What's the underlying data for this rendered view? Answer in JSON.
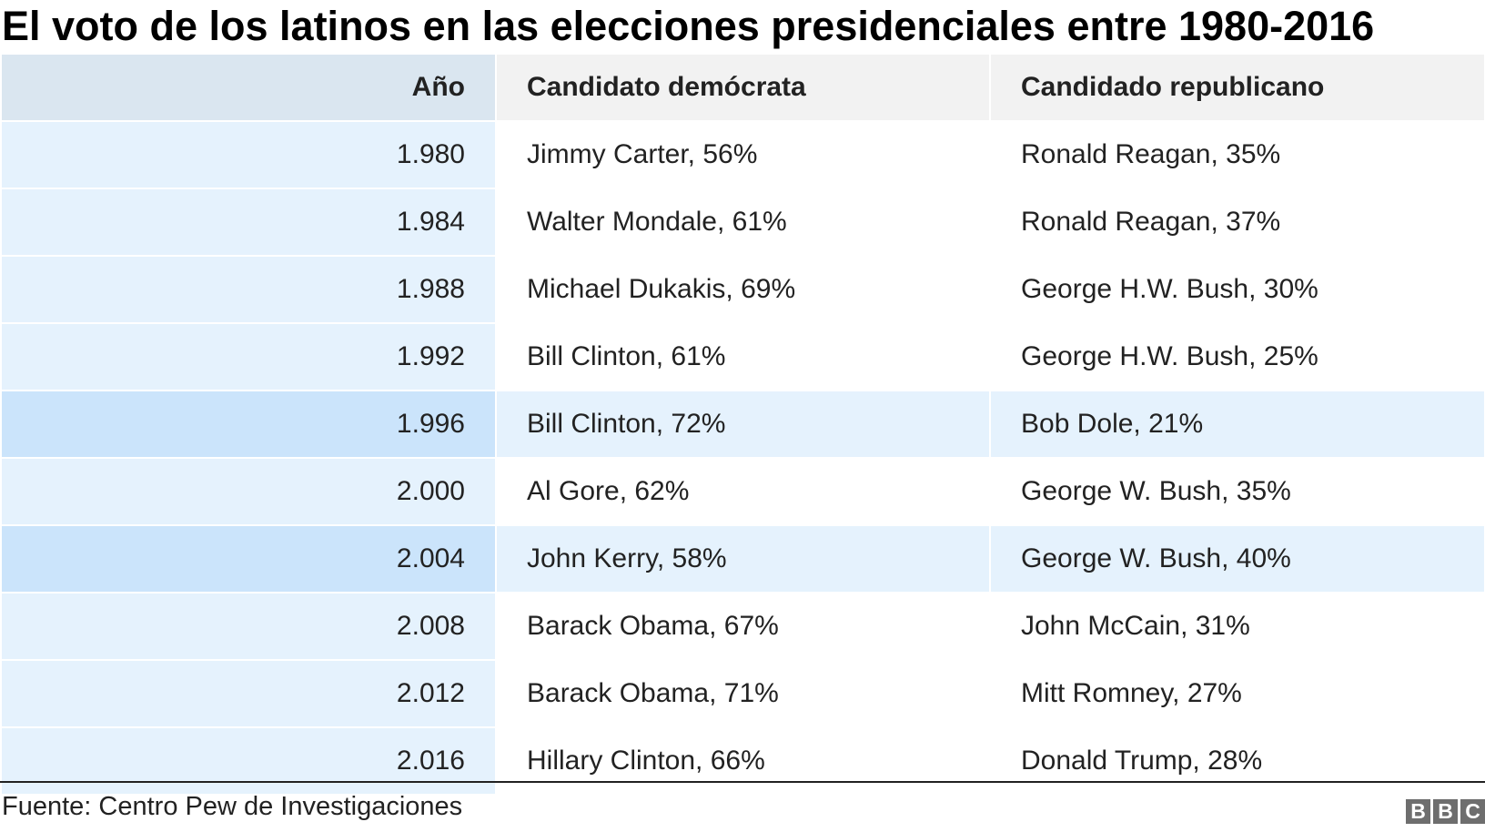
{
  "chart_data": {
    "type": "table",
    "title": "El voto de los latinos en las elecciones presidenciales entre 1980-2016",
    "columns": [
      "Año",
      "Candidato demócrata",
      "Candidado republicano"
    ],
    "rows": [
      {
        "year": "1.980",
        "democrat": "Jimmy Carter, 56%",
        "republican": "Ronald Reagan, 35%"
      },
      {
        "year": "1.984",
        "democrat": "Walter Mondale, 61%",
        "republican": "Ronald Reagan, 37%"
      },
      {
        "year": "1.988",
        "democrat": "Michael Dukakis, 69%",
        "republican": "George H.W. Bush, 30%"
      },
      {
        "year": "1.992",
        "democrat": "Bill Clinton, 61%",
        "republican": "George H.W. Bush, 25%"
      },
      {
        "year": "1.996",
        "democrat": "Bill Clinton, 72%",
        "republican": "Bob Dole, 21%"
      },
      {
        "year": "2.000",
        "democrat": "Al Gore, 62%",
        "republican": "George W. Bush, 35%"
      },
      {
        "year": "2.004",
        "democrat": "John Kerry, 58%",
        "republican": "George W. Bush, 40%"
      },
      {
        "year": "2.008",
        "democrat": "Barack Obama, 67%",
        "republican": "John McCain, 31%"
      },
      {
        "year": "2.012",
        "democrat": "Barack Obama, 71%",
        "republican": "Mitt Romney, 27%"
      },
      {
        "year": "2.016",
        "democrat": "Hillary Clinton, 66%",
        "republican": "Donald Trump, 28%"
      }
    ],
    "highlighted_rows": [
      "1.996",
      "2.004"
    ]
  },
  "footer": {
    "source": "Fuente: Centro Pew de Investigaciones",
    "logo_letters": [
      "B",
      "B",
      "C"
    ]
  },
  "colors": {
    "header_bg": "#f2f2f2",
    "year_header_bg": "#dae6f0",
    "year_cell_bg": "#e5f2fd",
    "highlight_row_bg": "#e5f2fd",
    "highlight_year_bg": "#cbe4fb",
    "logo_bg": "#6e6e6e"
  }
}
